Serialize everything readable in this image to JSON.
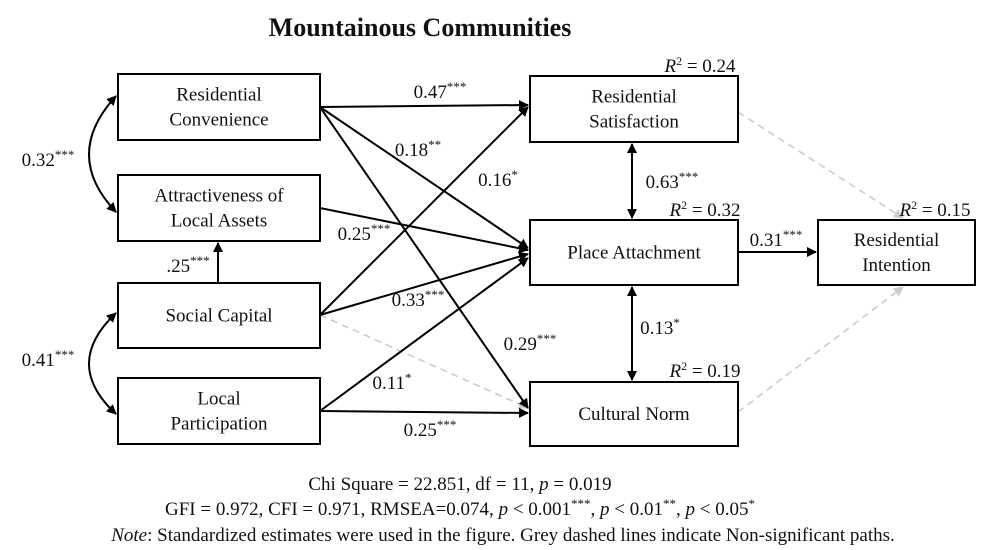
{
  "title": "Mountainous Communities",
  "nodes": [
    {
      "lines": [
        "Residential",
        "Convenience"
      ]
    },
    {
      "lines": [
        "Attractiveness of",
        "Local Assets"
      ]
    },
    {
      "lines": [
        "Social Capital"
      ]
    },
    {
      "lines": [
        "Local",
        "Participation"
      ]
    },
    {
      "lines": [
        "Residential",
        "Satisfaction"
      ]
    },
    {
      "lines": [
        "Place Attachment"
      ]
    },
    {
      "lines": [
        "Cultural Norm"
      ]
    },
    {
      "lines": [
        "Residential",
        "Intention"
      ]
    }
  ],
  "r2_labels": [
    {
      "var": "R",
      "power": "2",
      "text": " = 0.24"
    },
    {
      "var": "R",
      "power": "2",
      "text": " = 0.32"
    },
    {
      "var": "R",
      "power": "2",
      "text": " = 0.15"
    },
    {
      "var": "R",
      "power": "2",
      "text": " = 0.19"
    }
  ],
  "edges": [
    {
      "label": "0.47",
      "sig": "***"
    },
    {
      "label": "0.18",
      "sig": "**"
    },
    {
      "label": "0.29",
      "sig": "***"
    },
    {
      "label": "0.25",
      "sig": "***"
    },
    {
      "label": "0.16",
      "sig": "*"
    },
    {
      "label": "0.33",
      "sig": "***"
    },
    {
      "label": "0.11",
      "sig": "*"
    },
    {
      "label": "0.25",
      "sig": "***"
    },
    {
      "label": ".25",
      "sig": "***"
    },
    {
      "label": "0.63",
      "sig": "***"
    },
    {
      "label": "0.13",
      "sig": "*"
    },
    {
      "label": "0.31",
      "sig": "***"
    },
    {
      "label": "0.32",
      "sig": "***"
    },
    {
      "label": "0.41",
      "sig": "***"
    }
  ],
  "footer": [
    [
      {
        "t": "Chi Square = 22.851, df = 11, "
      },
      {
        "t": "p",
        "style": "i"
      },
      {
        "t": " = 0.019"
      }
    ],
    [
      {
        "t": "GFI = 0.972, CFI = 0.971, RMSEA=0.074, "
      },
      {
        "t": "p",
        "style": "i"
      },
      {
        "t": " < 0.001"
      },
      {
        "t": "***",
        "style": "sup"
      },
      {
        "t": ", "
      },
      {
        "t": "p",
        "style": "i"
      },
      {
        "t": " < 0.01"
      },
      {
        "t": "**",
        "style": "sup"
      },
      {
        "t": ", "
      },
      {
        "t": "p",
        "style": "i"
      },
      {
        "t": " < 0.05"
      },
      {
        "t": "*",
        "style": "sup"
      }
    ],
    [
      {
        "t": "Note",
        "style": "i"
      },
      {
        "t": ": Standardized estimates were used in the figure. Grey dashed lines indicate Non-significant paths."
      }
    ]
  ]
}
